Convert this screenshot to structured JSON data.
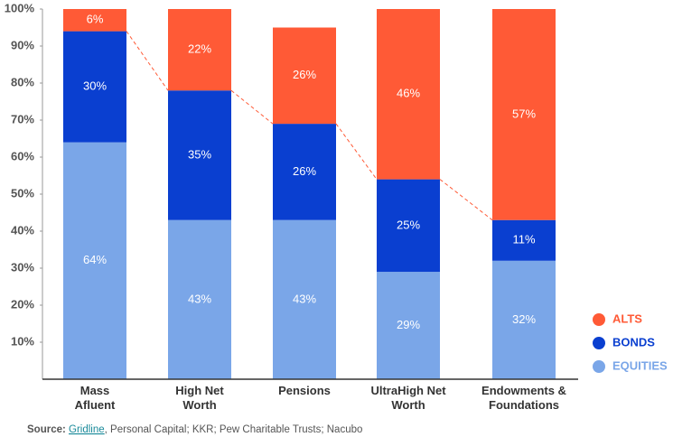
{
  "chart_data": {
    "type": "stacked_bar",
    "categories": [
      "Mass Afluent",
      "High Net Worth",
      "Pensions",
      "UltraHigh Net Worth",
      "Endowments & Foundations"
    ],
    "series": [
      {
        "name": "EQUITIES",
        "color": "#7aa6e8",
        "values": [
          64,
          43,
          43,
          29,
          32
        ],
        "value_labels": [
          "64%",
          "43%",
          "43%",
          "29%",
          "32%"
        ]
      },
      {
        "name": "BONDS",
        "color": "#0a3fd0",
        "values": [
          30,
          35,
          26,
          25,
          11
        ],
        "value_labels": [
          "30%",
          "35%",
          "26%",
          "25%",
          "11%"
        ]
      },
      {
        "name": "ALTS",
        "color": "#ff5a36",
        "values": [
          6,
          22,
          26,
          46,
          57
        ],
        "value_labels": [
          "6%",
          "22%",
          "26%",
          "46%",
          "57%"
        ]
      }
    ],
    "ylim": [
      0,
      100
    ],
    "yticks": [
      {
        "value": 10,
        "label": "10%"
      },
      {
        "value": 20,
        "label": "20%"
      },
      {
        "value": 30,
        "label": "30%"
      },
      {
        "value": 40,
        "label": "40%"
      },
      {
        "value": 50,
        "label": "50%"
      },
      {
        "value": 60,
        "label": "60%"
      },
      {
        "value": 70,
        "label": "70%"
      },
      {
        "value": 80,
        "label": "80%"
      },
      {
        "value": 90,
        "label": "90%"
      },
      {
        "value": 100,
        "label": "100%"
      }
    ],
    "grid": false,
    "legend": "right",
    "source": {
      "label": "Source:",
      "link": "Gridline",
      "rest": ", Personal Capital; KKR; Pew Charitable Trusts; Nacubo"
    }
  }
}
